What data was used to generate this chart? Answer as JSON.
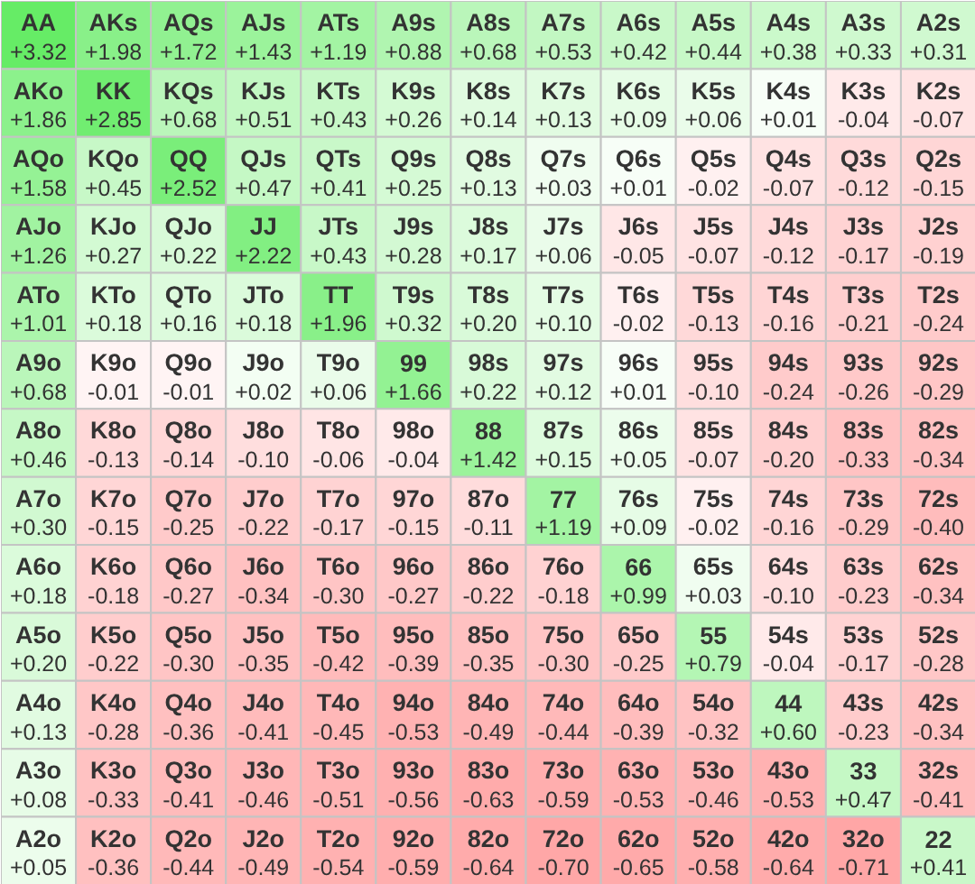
{
  "chart_data": {
    "type": "heatmap",
    "categories": [
      null,
      null,
      null,
      null,
      null,
      null,
      null,
      null,
      null,
      null,
      null,
      null,
      null
    ],
    "y_categories": [
      null,
      null,
      null,
      null,
      null,
      null,
      null,
      null,
      null,
      null,
      null,
      null,
      null
    ],
    "colors": [
      "#ffa6a6",
      "#ffffff",
      "#66ec66"
    ],
    "cells": [
      [
        3.32,
        1.98,
        1.72,
        1.43,
        1.19,
        0.88,
        0.68,
        0.53,
        0.42,
        0.44,
        0.38,
        0.33,
        0.31
      ],
      [
        1.86,
        2.85,
        0.68,
        0.51,
        0.43,
        0.26,
        0.14,
        0.13,
        0.09,
        0.06,
        0.01,
        -0.04,
        -0.07
      ],
      [
        1.58,
        0.45,
        2.52,
        0.47,
        0.41,
        0.25,
        0.13,
        0.03,
        0.01,
        -0.02,
        -0.07,
        -0.12,
        -0.15
      ],
      [
        1.26,
        0.27,
        0.22,
        2.22,
        0.43,
        0.28,
        0.17,
        0.06,
        -0.05,
        -0.07,
        -0.12,
        -0.17,
        -0.19
      ],
      [
        1.01,
        0.18,
        0.16,
        0.18,
        1.96,
        0.32,
        0.2,
        0.1,
        -0.02,
        -0.13,
        -0.16,
        -0.21,
        -0.24
      ],
      [
        0.68,
        -0.01,
        -0.01,
        0.02,
        0.06,
        1.66,
        0.22,
        0.12,
        0.01,
        -0.1,
        -0.24,
        -0.26,
        -0.29
      ],
      [
        0.46,
        -0.13,
        -0.14,
        -0.1,
        -0.06,
        -0.04,
        1.42,
        0.15,
        0.05,
        -0.07,
        -0.2,
        -0.33,
        -0.34
      ],
      [
        0.3,
        -0.15,
        -0.25,
        -0.22,
        -0.17,
        -0.15,
        -0.11,
        1.19,
        0.09,
        -0.02,
        -0.16,
        -0.29,
        -0.4
      ],
      [
        0.18,
        -0.18,
        -0.27,
        -0.34,
        -0.3,
        -0.27,
        -0.22,
        -0.18,
        0.99,
        0.03,
        -0.1,
        -0.23,
        -0.34
      ],
      [
        0.2,
        -0.22,
        -0.3,
        -0.35,
        -0.42,
        -0.39,
        -0.35,
        -0.3,
        -0.25,
        0.79,
        -0.04,
        -0.17,
        -0.28
      ],
      [
        0.13,
        -0.28,
        -0.36,
        -0.41,
        -0.45,
        -0.53,
        -0.49,
        -0.44,
        -0.39,
        -0.32,
        0.6,
        -0.23,
        -0.34
      ],
      [
        0.08,
        -0.33,
        -0.41,
        -0.46,
        -0.51,
        -0.56,
        -0.63,
        -0.59,
        -0.53,
        -0.46,
        -0.53,
        0.47,
        -0.41
      ],
      [
        0.05,
        -0.36,
        -0.44,
        -0.49,
        -0.54,
        -0.59,
        -0.64,
        -0.7,
        -0.65,
        -0.58,
        -0.64,
        -0.71,
        0.41
      ]
    ],
    "cell_labels": [
      [
        "+3.32",
        "+1.98",
        "+1.72",
        "+1.43",
        "+1.19",
        "+0.88",
        "+0.68",
        "+0.53",
        "+0.42",
        "+0.44",
        "+0.38",
        "+0.33",
        "+0.31"
      ],
      [
        "+1.86",
        "+2.85",
        "+0.68",
        "+0.51",
        "+0.43",
        "+0.26",
        "+0.14",
        "+0.13",
        "+0.09",
        "+0.06",
        "+0.01",
        "-0.04",
        "-0.07"
      ],
      [
        "+1.58",
        "+0.45",
        "+2.52",
        "+0.47",
        "+0.41",
        "+0.25",
        "+0.13",
        "+0.03",
        "+0.01",
        "-0.02",
        "-0.07",
        "-0.12",
        "-0.15"
      ],
      [
        "+1.26",
        "+0.27",
        "+0.22",
        "+2.22",
        "+0.43",
        "+0.28",
        "+0.17",
        "+0.06",
        "-0.05",
        "-0.07",
        "-0.12",
        "-0.17",
        "-0.19"
      ],
      [
        "+1.01",
        "+0.18",
        "+0.16",
        "+0.18",
        "+1.96",
        "+0.32",
        "+0.20",
        "+0.10",
        "-0.02",
        "-0.13",
        "-0.16",
        "-0.21",
        "-0.24"
      ],
      [
        "+0.68",
        "-0.01",
        "-0.01",
        "+0.02",
        "+0.06",
        "+1.66",
        "+0.22",
        "+0.12",
        "+0.01",
        "-0.10",
        "-0.24",
        "-0.26",
        "-0.29"
      ],
      [
        "+0.46",
        "-0.13",
        "-0.14",
        "-0.10",
        "-0.06",
        "-0.04",
        "+1.42",
        "+0.15",
        "+0.05",
        "-0.07",
        "-0.20",
        "-0.33",
        "-0.34"
      ],
      [
        "+0.30",
        "-0.15",
        "-0.25",
        "-0.22",
        "-0.17",
        "-0.15",
        "-0.11",
        "+1.19",
        "+0.09",
        "-0.02",
        "-0.16",
        "-0.29",
        "-0.40"
      ],
      [
        "+0.18",
        "-0.18",
        "-0.27",
        "-0.34",
        "-0.30",
        "-0.27",
        "-0.22",
        "-0.18",
        "+0.99",
        "+0.03",
        "-0.10",
        "-0.23",
        "-0.34"
      ],
      [
        "+0.20",
        "-0.22",
        "-0.30",
        "-0.35",
        "-0.42",
        "-0.39",
        "-0.35",
        "-0.30",
        "-0.25",
        "+0.79",
        "-0.04",
        "-0.17",
        "-0.28"
      ],
      [
        "+0.13",
        "-0.28",
        "-0.36",
        "-0.41",
        "-0.45",
        "-0.53",
        "-0.49",
        "-0.44",
        "-0.39",
        "-0.32",
        "+0.60",
        "-0.23",
        "-0.34"
      ],
      [
        "+0.08",
        "-0.33",
        "-0.41",
        "-0.46",
        "-0.51",
        "-0.56",
        "-0.63",
        "-0.59",
        "-0.53",
        "-0.46",
        "-0.53",
        "+0.47",
        "-0.41"
      ],
      [
        "+0.05",
        "-0.36",
        "-0.44",
        "-0.49",
        "-0.54",
        "-0.59",
        "-0.64",
        "-0.70",
        "-0.65",
        "-0.58",
        "-0.64",
        "-0.71",
        "+0.41"
      ]
    ],
    "annotations": [
      "AA",
      "AKs",
      "AQs",
      "AJs",
      "ATs",
      "A9s",
      "A8s",
      "A7s",
      "A6s",
      "A5s",
      "A4s",
      "A3s",
      "A2s",
      "AKo",
      "KK",
      "KQs",
      "KJs",
      "KTs",
      "K9s",
      "K8s",
      "K7s",
      "K6s",
      "K5s",
      "K4s",
      "K3s",
      "K2s",
      "AQo",
      "KQo",
      "QQ",
      "QJs",
      "QTs",
      "Q9s",
      "Q8s",
      "Q7s",
      "Q6s",
      "Q5s",
      "Q4s",
      "Q3s",
      "Q2s",
      "AJo",
      "KJo",
      "QJo",
      "JJ",
      "JTs",
      "J9s",
      "J8s",
      "J7s",
      "J6s",
      "J5s",
      "J4s",
      "J3s",
      "J2s",
      "ATo",
      "KTo",
      "QTo",
      "JTo",
      "TT",
      "T9s",
      "T8s",
      "T7s",
      "T6s",
      "T5s",
      "T4s",
      "T3s",
      "T2s",
      "A9o",
      "K9o",
      "Q9o",
      "J9o",
      "T9o",
      "99",
      "98s",
      "97s",
      "96s",
      "95s",
      "94s",
      "93s",
      "92s",
      "A8o",
      "K8o",
      "Q8o",
      "J8o",
      "T8o",
      "98o",
      "88",
      "87s",
      "86s",
      "85s",
      "84s",
      "83s",
      "82s",
      "A7o",
      "K7o",
      "Q7o",
      "J7o",
      "T7o",
      "97o",
      "87o",
      "77",
      "76s",
      "75s",
      "74s",
      "73s",
      "72s",
      "A6o",
      "K6o",
      "Q6o",
      "J6o",
      "T6o",
      "96o",
      "86o",
      "76o",
      "66",
      "65s",
      "64s",
      "63s",
      "62s",
      "A5o",
      "K5o",
      "Q5o",
      "J5o",
      "T5o",
      "95o",
      "85o",
      "75o",
      "65o",
      "55",
      "54s",
      "53s",
      "52s",
      "A4o",
      "K4o",
      "Q4o",
      "J4o",
      "T4o",
      "94o",
      "84o",
      "74o",
      "64o",
      "54o",
      "44",
      "43s",
      "42s",
      "A3o",
      "K3o",
      "Q3o",
      "J3o",
      "T3o",
      "93o",
      "83o",
      "73o",
      "63o",
      "53o",
      "43o",
      "33",
      "32s",
      "A2o",
      "K2o",
      "Q2o",
      "J2o",
      "T2o",
      "92o",
      "82o",
      "72o",
      "62o",
      "52o",
      "42o",
      "32o",
      "22"
    ]
  }
}
